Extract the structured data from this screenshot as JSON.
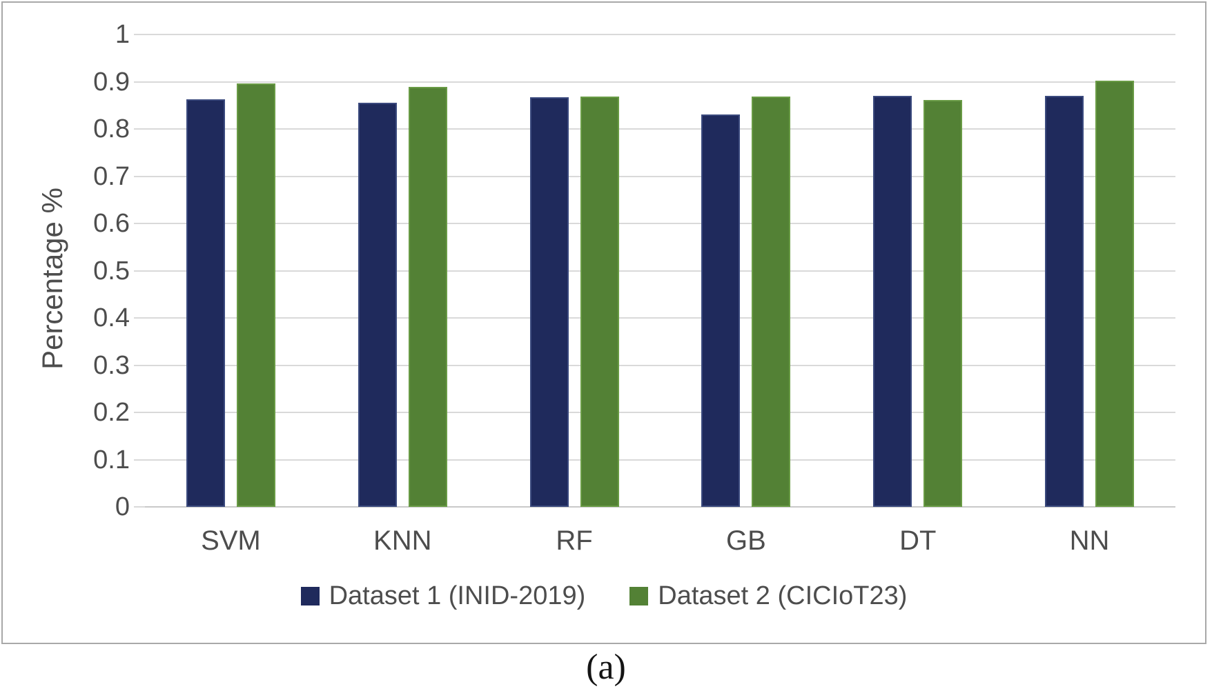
{
  "chart_data": {
    "type": "bar",
    "title": "",
    "xlabel": "",
    "ylabel": "Percentage %",
    "categories": [
      "SVM",
      "KNN",
      "RF",
      "GB",
      "DT",
      "NN"
    ],
    "series": [
      {
        "name": "Dataset 1 (INID-2019)",
        "color": "#1f2a5c",
        "border_color": "#3b4a7e",
        "values": [
          0.863,
          0.855,
          0.867,
          0.831,
          0.87,
          0.87
        ]
      },
      {
        "name": "Dataset 2 (CICIoT23)",
        "color": "#538135",
        "border_color": "#699b45",
        "values": [
          0.897,
          0.889,
          0.868,
          0.868,
          0.861,
          0.902
        ]
      }
    ],
    "ylim": [
      0,
      1
    ],
    "ytick_step": 0.1,
    "ytick_labels": [
      "0",
      "0.1",
      "0.2",
      "0.3",
      "0.4",
      "0.5",
      "0.6",
      "0.7",
      "0.8",
      "0.9",
      "1"
    ],
    "grid": true,
    "legend_position": "bottom",
    "gridline_color": "#d9d9d9",
    "text_color": "#4d4d4d"
  },
  "figure": {
    "caption": "(a)"
  }
}
